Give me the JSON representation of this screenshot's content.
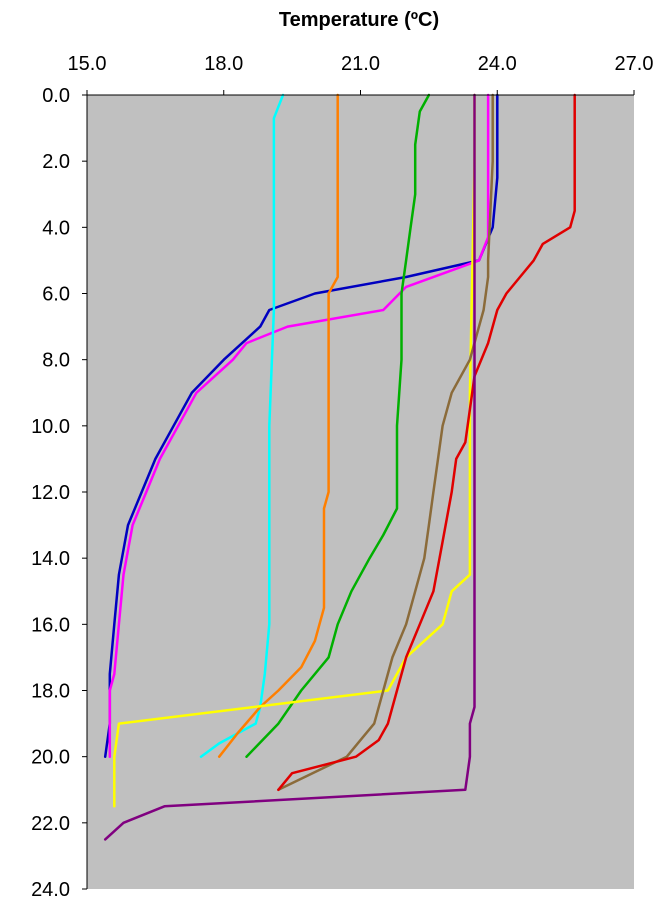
{
  "chart_data": {
    "type": "line",
    "title": "",
    "xlabel": "Temperature (ºC)",
    "ylabel": "",
    "x_axis_position": "top",
    "y_axis_inverted": true,
    "xlim": [
      15.0,
      27.0
    ],
    "ylim": [
      0.0,
      24.0
    ],
    "x_ticks": [
      "15.0",
      "18.0",
      "21.0",
      "24.0",
      "27.0"
    ],
    "y_ticks": [
      "0.0",
      "2.0",
      "4.0",
      "6.0",
      "8.0",
      "10.0",
      "12.0",
      "14.0",
      "16.0",
      "18.0",
      "20.0",
      "22.0",
      "24.0"
    ],
    "plot_background": "#c0c0c0",
    "grid": false,
    "legend": "none",
    "series": [
      {
        "color": "#0000c0",
        "points": [
          [
            24.0,
            0.0
          ],
          [
            24.0,
            2.5
          ],
          [
            23.9,
            4.0
          ],
          [
            23.6,
            5.0
          ],
          [
            22.0,
            5.5
          ],
          [
            20.0,
            6.0
          ],
          [
            19.0,
            6.5
          ],
          [
            18.8,
            7.0
          ],
          [
            18.0,
            8.0
          ],
          [
            17.3,
            9.0
          ],
          [
            16.9,
            10.0
          ],
          [
            16.5,
            11.0
          ],
          [
            16.2,
            12.0
          ],
          [
            15.9,
            13.0
          ],
          [
            15.7,
            14.5
          ],
          [
            15.6,
            16.0
          ],
          [
            15.5,
            17.5
          ],
          [
            15.5,
            19.0
          ],
          [
            15.4,
            20.0
          ]
        ]
      },
      {
        "color": "#ff00ff",
        "points": [
          [
            23.8,
            0.0
          ],
          [
            23.8,
            4.3
          ],
          [
            23.6,
            5.0
          ],
          [
            22.0,
            5.8
          ],
          [
            21.5,
            6.5
          ],
          [
            19.4,
            7.0
          ],
          [
            18.5,
            7.5
          ],
          [
            18.2,
            8.0
          ],
          [
            17.4,
            9.0
          ],
          [
            17.0,
            10.0
          ],
          [
            16.6,
            11.0
          ],
          [
            16.3,
            12.0
          ],
          [
            16.0,
            13.0
          ],
          [
            15.8,
            14.5
          ],
          [
            15.7,
            16.0
          ],
          [
            15.6,
            17.5
          ],
          [
            15.5,
            18.0
          ],
          [
            15.5,
            20.0
          ]
        ]
      },
      {
        "color": "#00ffff",
        "points": [
          [
            19.3,
            0.0
          ],
          [
            19.1,
            0.7
          ],
          [
            19.1,
            2.0
          ],
          [
            19.1,
            6.5
          ],
          [
            19.0,
            10.0
          ],
          [
            19.0,
            16.0
          ],
          [
            18.9,
            17.5
          ],
          [
            18.8,
            18.5
          ],
          [
            18.7,
            19.0
          ],
          [
            18.3,
            19.3
          ],
          [
            17.9,
            19.6
          ],
          [
            17.5,
            20.0
          ]
        ]
      },
      {
        "color": "#ff7f00",
        "points": [
          [
            20.5,
            0.0
          ],
          [
            20.5,
            5.5
          ],
          [
            20.3,
            6.0
          ],
          [
            20.3,
            8.0
          ],
          [
            20.3,
            12.0
          ],
          [
            20.2,
            12.5
          ],
          [
            20.2,
            15.5
          ],
          [
            20.0,
            16.5
          ],
          [
            19.7,
            17.3
          ],
          [
            19.2,
            18.0
          ],
          [
            18.8,
            18.5
          ],
          [
            18.3,
            19.3
          ],
          [
            17.9,
            20.0
          ]
        ]
      },
      {
        "color": "#00b000",
        "points": [
          [
            22.5,
            0.0
          ],
          [
            22.3,
            0.5
          ],
          [
            22.2,
            1.5
          ],
          [
            22.2,
            3.0
          ],
          [
            22.1,
            4.0
          ],
          [
            22.0,
            5.0
          ],
          [
            21.9,
            6.0
          ],
          [
            21.9,
            8.0
          ],
          [
            21.8,
            10.0
          ],
          [
            21.8,
            11.0
          ],
          [
            21.8,
            12.5
          ],
          [
            21.5,
            13.3
          ],
          [
            21.2,
            14.0
          ],
          [
            20.8,
            15.0
          ],
          [
            20.5,
            16.0
          ],
          [
            20.3,
            17.0
          ],
          [
            19.7,
            18.0
          ],
          [
            19.2,
            19.0
          ],
          [
            18.5,
            20.0
          ]
        ]
      },
      {
        "color": "#ffff00",
        "points": [
          [
            23.5,
            0.0
          ],
          [
            23.5,
            1.0
          ],
          [
            23.5,
            2.0
          ],
          [
            23.4,
            9.0
          ],
          [
            23.4,
            10.0
          ],
          [
            23.4,
            12.0
          ],
          [
            23.4,
            14.5
          ],
          [
            23.0,
            15.0
          ],
          [
            22.8,
            16.0
          ],
          [
            22.0,
            17.0
          ],
          [
            21.6,
            18.0
          ],
          [
            15.7,
            19.0
          ],
          [
            15.6,
            20.0
          ],
          [
            15.6,
            21.5
          ]
        ]
      },
      {
        "color": "#8b6b3a",
        "points": [
          [
            23.9,
            0.0
          ],
          [
            23.9,
            2.0
          ],
          [
            23.8,
            5.0
          ],
          [
            23.8,
            5.5
          ],
          [
            23.7,
            6.5
          ],
          [
            23.6,
            7.0
          ],
          [
            23.4,
            8.0
          ],
          [
            23.0,
            9.0
          ],
          [
            22.8,
            10.0
          ],
          [
            22.7,
            11.0
          ],
          [
            22.6,
            12.0
          ],
          [
            22.5,
            13.0
          ],
          [
            22.4,
            14.0
          ],
          [
            22.2,
            15.0
          ],
          [
            22.0,
            16.0
          ],
          [
            21.7,
            17.0
          ],
          [
            21.5,
            18.0
          ],
          [
            21.3,
            19.0
          ],
          [
            21.0,
            19.5
          ],
          [
            20.7,
            20.0
          ],
          [
            19.8,
            20.6
          ],
          [
            19.2,
            21.0
          ]
        ]
      },
      {
        "color": "#e00000",
        "points": [
          [
            25.7,
            0.0
          ],
          [
            25.7,
            1.0
          ],
          [
            25.7,
            3.5
          ],
          [
            25.6,
            4.0
          ],
          [
            25.0,
            4.5
          ],
          [
            24.8,
            5.0
          ],
          [
            24.5,
            5.5
          ],
          [
            24.2,
            6.0
          ],
          [
            24.0,
            6.5
          ],
          [
            23.8,
            7.5
          ],
          [
            23.5,
            8.5
          ],
          [
            23.4,
            9.5
          ],
          [
            23.3,
            10.5
          ],
          [
            23.1,
            11.0
          ],
          [
            23.0,
            12.0
          ],
          [
            22.8,
            13.5
          ],
          [
            22.6,
            15.0
          ],
          [
            22.3,
            16.0
          ],
          [
            22.0,
            17.0
          ],
          [
            21.8,
            18.0
          ],
          [
            21.6,
            19.0
          ],
          [
            21.4,
            19.5
          ],
          [
            20.9,
            20.0
          ],
          [
            19.5,
            20.5
          ],
          [
            19.2,
            21.0
          ]
        ]
      },
      {
        "color": "#800080",
        "points": [
          [
            23.5,
            0.0
          ],
          [
            23.5,
            5.0
          ],
          [
            23.5,
            10.0
          ],
          [
            23.5,
            18.5
          ],
          [
            23.4,
            19.0
          ],
          [
            23.4,
            20.0
          ],
          [
            23.3,
            21.0
          ],
          [
            16.7,
            21.5
          ],
          [
            15.8,
            22.0
          ],
          [
            15.4,
            22.5
          ]
        ]
      }
    ]
  }
}
